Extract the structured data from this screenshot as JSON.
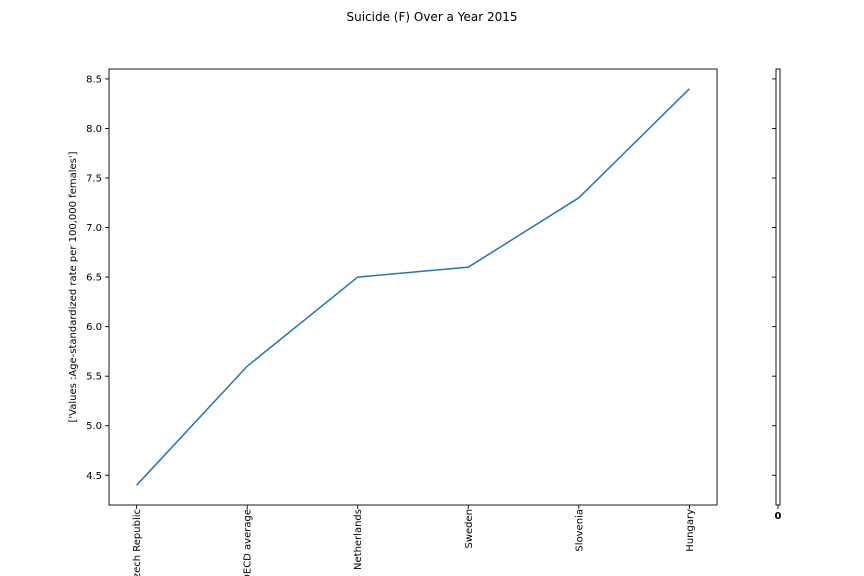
{
  "chart_data": {
    "type": "line",
    "title": "Suicide (F) Over a Year 2015",
    "categories": [
      "Czech Republic",
      "OECD average",
      "Netherlands",
      "Sweden",
      "Slovenia",
      "Hungary"
    ],
    "values": [
      4.4,
      5.6,
      6.5,
      6.6,
      7.3,
      8.4
    ],
    "xlabel": "",
    "ylabel": "['Values :Age-standardized rate per 100,000 females']",
    "y_ticks": [
      4.5,
      5.0,
      5.5,
      6.0,
      6.5,
      7.0,
      7.5,
      8.0,
      8.5
    ],
    "ylim": [
      4.2,
      8.6
    ],
    "xlim": [
      -0.25,
      5.25
    ],
    "grid": false,
    "legend": "none",
    "line_color": "#1f77b4",
    "axis_color": "#000000",
    "text_color": "#000000",
    "right_strip": {
      "x_tick_label": "0"
    }
  }
}
